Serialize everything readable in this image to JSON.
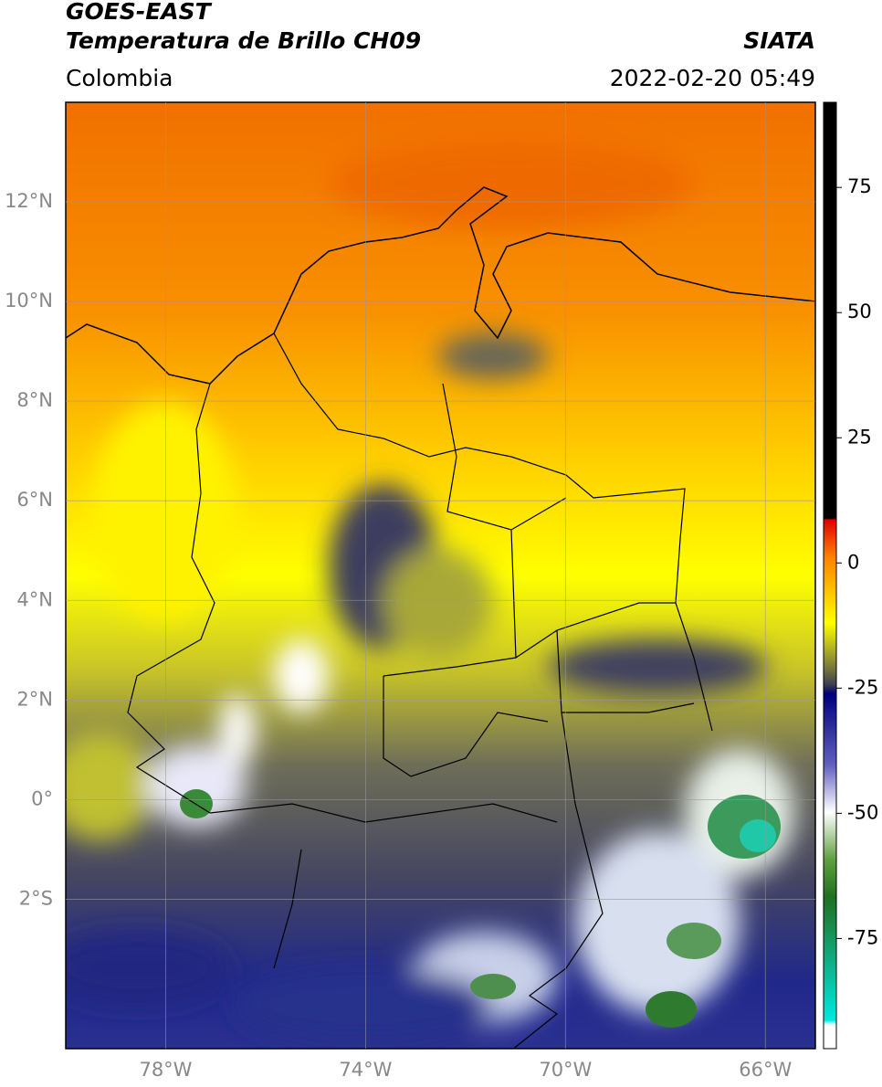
{
  "chart_data": {
    "type": "map",
    "title": "GOES-EAST",
    "subtitle": "Temperatura de Brillo CH09",
    "source": "SIATA",
    "region": "Colombia",
    "datetime": "2022-02-20 05:49",
    "xlim": [
      -80,
      -65
    ],
    "ylim": [
      -5,
      14
    ],
    "xticks": [
      {
        "value": -78,
        "label": "78°W"
      },
      {
        "value": -74,
        "label": "74°W"
      },
      {
        "value": -70,
        "label": "70°W"
      },
      {
        "value": -66,
        "label": "66°W"
      }
    ],
    "yticks": [
      {
        "value": 12,
        "label": "12°N"
      },
      {
        "value": 10,
        "label": "10°N"
      },
      {
        "value": 8,
        "label": "8°N"
      },
      {
        "value": 6,
        "label": "6°N"
      },
      {
        "value": 4,
        "label": "4°N"
      },
      {
        "value": 2,
        "label": "2°N"
      },
      {
        "value": 0,
        "label": "0°"
      },
      {
        "value": -2,
        "label": "2°S"
      }
    ],
    "grid": true,
    "colorbar": {
      "lim": [
        -97,
        92
      ],
      "ticks": [
        75,
        50,
        25,
        0,
        -25,
        -50,
        -75
      ]
    }
  }
}
